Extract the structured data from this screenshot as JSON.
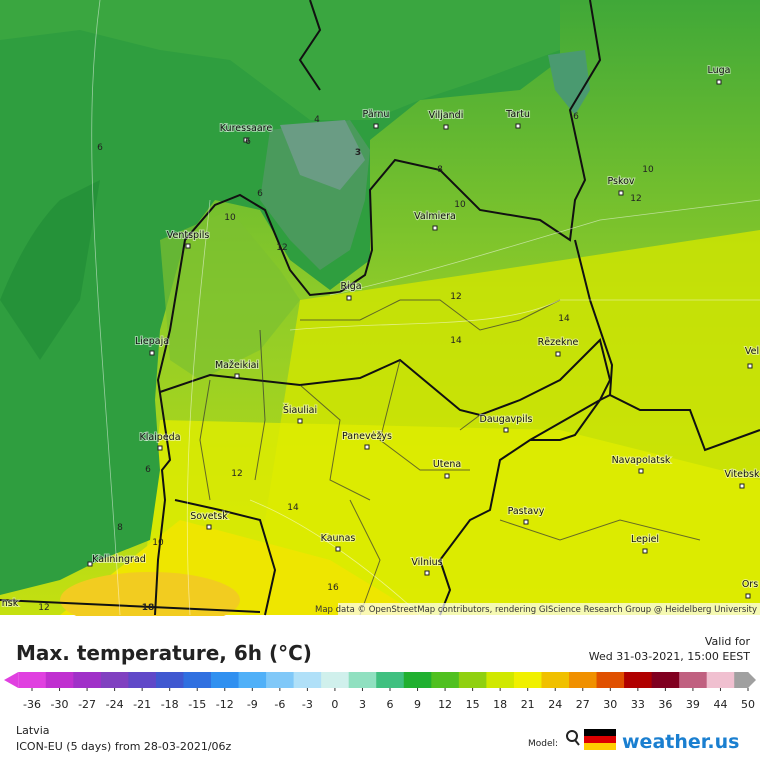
{
  "header": {
    "title": "Max. temperature, 6h (°C)",
    "valid_label": "Valid for",
    "valid_time": "Wed 31-03-2021, 15:00 EEST"
  },
  "map": {
    "cities": [
      "Pärnu",
      "Viljandi",
      "Tartu",
      "Luga",
      "Kuressaare",
      "Pskov",
      "Valmiera",
      "Ventspils",
      "Riga",
      "Rēzekne",
      "Liepaja",
      "Mažeikiai",
      "Šiauliai",
      "Panevėžys",
      "Daugavpils",
      "Klaipeda",
      "Navapolatsk",
      "Utena",
      "Vitebsk",
      "Sovetsk",
      "Pastavy",
      "Kaunas",
      "Lepiel",
      "Kaliningrad",
      "Vilnius",
      "Ors",
      "Vel",
      "nsk"
    ],
    "contour_labels": [
      6,
      4,
      3,
      8,
      10,
      10,
      12,
      12,
      14,
      14,
      10,
      12,
      6,
      12,
      14,
      6,
      8,
      10,
      16,
      18,
      12,
      6,
      6
    ],
    "attribution": "Map data © OpenStreetMap contributors, rendering GIScience Research Group @ Heidelberg University"
  },
  "legend": {
    "ticks": [
      -36,
      -30,
      -27,
      -24,
      -21,
      -18,
      -15,
      -12,
      -9,
      -6,
      -3,
      0,
      3,
      6,
      9,
      12,
      15,
      18,
      21,
      24,
      27,
      30,
      33,
      36,
      39,
      44,
      50
    ],
    "colors": [
      "#e040e0",
      "#c030d0",
      "#a030c8",
      "#8040c0",
      "#6048c8",
      "#4058d0",
      "#3070e0",
      "#3090f0",
      "#50b0f8",
      "#80c8f8",
      "#b0e0f8",
      "#d0f0ec",
      "#90e0c0",
      "#40c080",
      "#20b030",
      "#50c020",
      "#90d010",
      "#d0e800",
      "#f0f000",
      "#f0c000",
      "#f09000",
      "#e05000",
      "#b00000",
      "#800020",
      "#c06080",
      "#f0c0d0",
      "#a0a0a0"
    ]
  },
  "footer": {
    "region": "Latvia",
    "model_run": "ICON-EU (5 days) from 28-03-2021/06z",
    "model_label": "Model:",
    "brand": "weather.us"
  }
}
